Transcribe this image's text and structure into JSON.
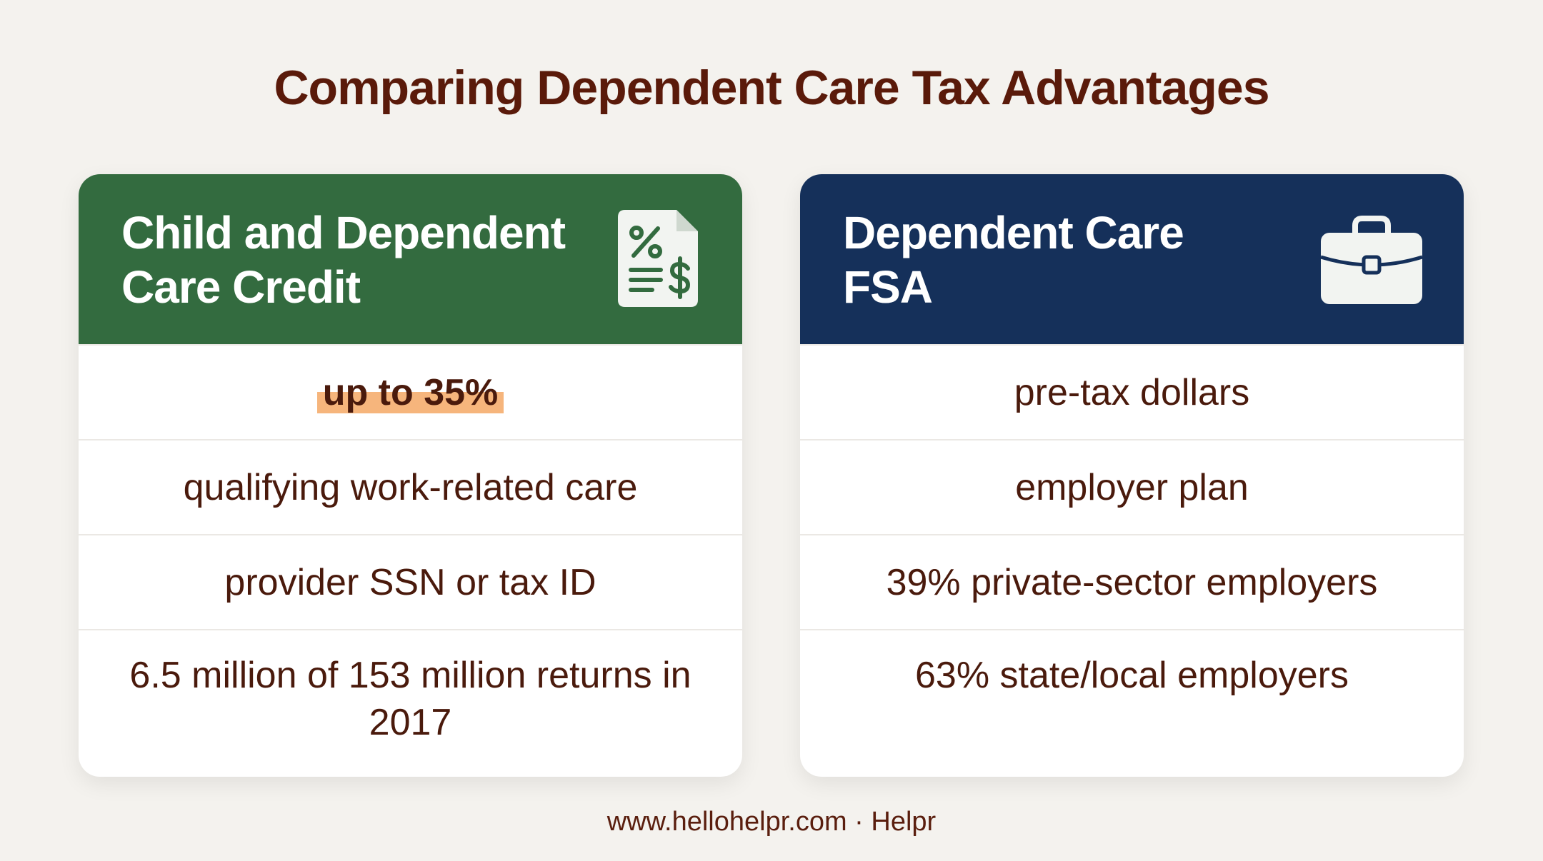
{
  "title": "Comparing Dependent Care Tax Advantages",
  "cards": [
    {
      "header": [
        "Child and Dependent",
        "Care Credit"
      ],
      "rows": [
        "up to 35%",
        "qualifying work-related care",
        "provider SSN or tax ID",
        "6.5 million of 153 million returns in 2017"
      ]
    },
    {
      "header": [
        "Dependent Care",
        "FSA"
      ],
      "rows": [
        "pre-tax dollars",
        "employer plan",
        "39% private-sector employers",
        "63% state/local employers"
      ]
    }
  ],
  "footer": "www.hellohelpr.com · Helpr"
}
